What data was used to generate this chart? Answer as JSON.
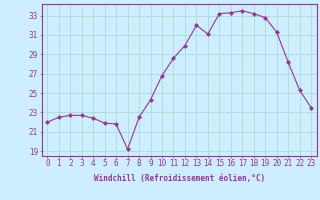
{
  "hours": [
    0,
    1,
    2,
    3,
    4,
    5,
    6,
    7,
    8,
    9,
    10,
    11,
    12,
    13,
    14,
    15,
    16,
    17,
    18,
    19,
    20,
    21,
    22,
    23
  ],
  "windchill": [
    22.0,
    22.5,
    22.7,
    22.7,
    22.4,
    21.9,
    21.8,
    19.2,
    22.5,
    24.3,
    26.8,
    28.6,
    29.9,
    32.0,
    31.1,
    33.2,
    33.3,
    33.5,
    33.2,
    32.8,
    31.3,
    28.2,
    25.3,
    23.5
  ],
  "line_color": "#993399",
  "marker": "D",
  "marker_size": 2,
  "bg_color": "#cceeff",
  "grid_color": "#aaddcc",
  "xlabel": "Windchill (Refroidissement éolien,°C)",
  "ylabel_ticks": [
    19,
    21,
    23,
    25,
    27,
    29,
    31,
    33
  ],
  "xlim": [
    -0.5,
    23.5
  ],
  "ylim": [
    18.5,
    34.2
  ],
  "tick_color": "#993399",
  "label_color": "#993399",
  "tick_fontsize": 5.5,
  "xlabel_fontsize": 5.5
}
